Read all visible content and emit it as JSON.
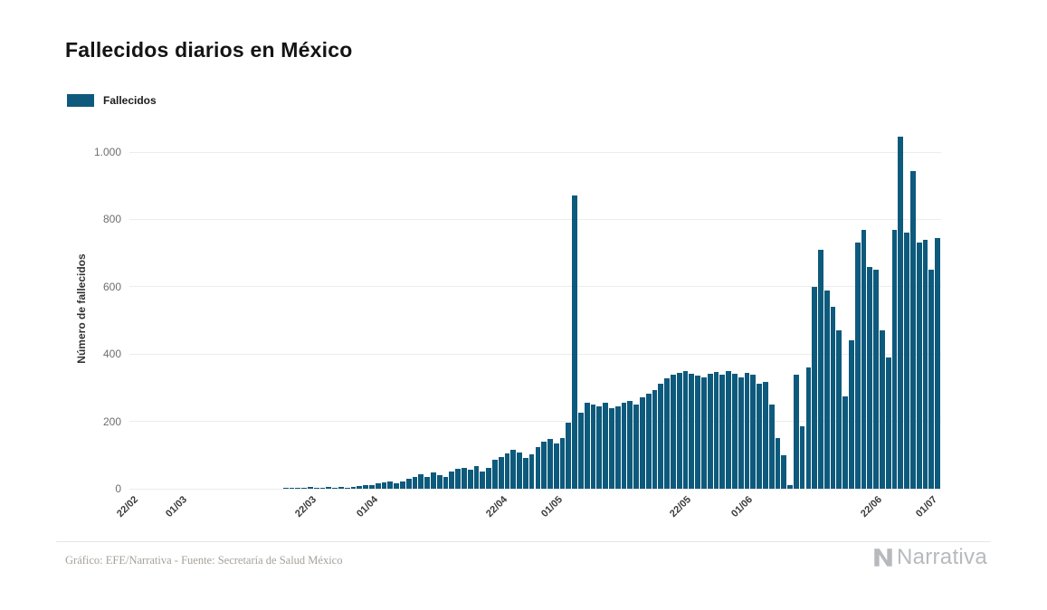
{
  "title": "Fallecidos diarios en México",
  "legend": {
    "label": "Fallecidos"
  },
  "y_axis": {
    "label": "Número de fallecidos"
  },
  "footer": {
    "source": "Gráfico: EFE/Narrativa - Fuente: Secretaría de Salud México",
    "brand": "Narrativa"
  },
  "colors": {
    "bar": "#0e5a7c",
    "grid": "#ececec",
    "axis_text": "#6e6e6e",
    "tick_text": "#3a3a3a",
    "footer_text": "#a6a199",
    "brand": "#b7babd"
  },
  "chart_data": {
    "type": "bar",
    "title": "Fallecidos diarios en México",
    "xlabel": "",
    "ylabel": "Número de fallecidos",
    "ylim": [
      0,
      1070
    ],
    "grid": true,
    "legend_position": "top-left",
    "legend_entries": [
      "Fallecidos"
    ],
    "y_tick_values": [
      0,
      200,
      400,
      600,
      800,
      1000
    ],
    "y_tick_labels": [
      "0",
      "200",
      "400",
      "600",
      "800",
      "1.000"
    ],
    "x_tick_labels": [
      "22/02",
      "01/03",
      "22/03",
      "01/04",
      "22/04",
      "01/05",
      "22/05",
      "01/06",
      "22/06",
      "01/07"
    ],
    "x_tick_indices": [
      0,
      8,
      29,
      39,
      60,
      69,
      90,
      100,
      121,
      130
    ],
    "x": [
      "22/02",
      "23/02",
      "24/02",
      "25/02",
      "26/02",
      "27/02",
      "28/02",
      "29/02",
      "01/03",
      "02/03",
      "03/03",
      "04/03",
      "05/03",
      "06/03",
      "07/03",
      "08/03",
      "09/03",
      "10/03",
      "11/03",
      "12/03",
      "13/03",
      "14/03",
      "15/03",
      "16/03",
      "17/03",
      "18/03",
      "19/03",
      "20/03",
      "21/03",
      "22/03",
      "23/03",
      "24/03",
      "25/03",
      "26/03",
      "27/03",
      "28/03",
      "29/03",
      "30/03",
      "31/03",
      "01/04",
      "02/04",
      "03/04",
      "04/04",
      "05/04",
      "06/04",
      "07/04",
      "08/04",
      "09/04",
      "10/04",
      "11/04",
      "12/04",
      "13/04",
      "14/04",
      "15/04",
      "16/04",
      "17/04",
      "18/04",
      "19/04",
      "20/04",
      "21/04",
      "22/04",
      "23/04",
      "24/04",
      "25/04",
      "26/04",
      "27/04",
      "28/04",
      "29/04",
      "30/04",
      "01/05",
      "02/05",
      "03/05",
      "04/05",
      "05/05",
      "06/05",
      "07/05",
      "08/05",
      "09/05",
      "10/05",
      "11/05",
      "12/05",
      "13/05",
      "14/05",
      "15/05",
      "16/05",
      "17/05",
      "18/05",
      "19/05",
      "20/05",
      "21/05",
      "22/05",
      "23/05",
      "24/05",
      "25/05",
      "26/05",
      "27/05",
      "28/05",
      "29/05",
      "30/05",
      "31/05",
      "01/06",
      "02/06",
      "03/06",
      "04/06",
      "05/06",
      "06/06",
      "07/06",
      "08/06",
      "09/06",
      "10/06",
      "11/06",
      "12/06",
      "13/06",
      "14/06",
      "15/06",
      "16/06",
      "17/06",
      "18/06",
      "19/06",
      "20/06",
      "21/06",
      "22/06",
      "23/06",
      "24/06",
      "25/06",
      "26/06",
      "27/06",
      "28/06",
      "29/06",
      "30/06",
      "01/07",
      "02/07"
    ],
    "values": [
      0,
      0,
      0,
      0,
      0,
      0,
      0,
      0,
      0,
      0,
      0,
      0,
      0,
      0,
      0,
      0,
      0,
      0,
      0,
      0,
      0,
      0,
      0,
      0,
      0,
      1,
      1,
      2,
      3,
      5,
      1,
      4,
      5,
      3,
      6,
      4,
      5,
      9,
      10,
      12,
      15,
      18,
      21,
      15,
      22,
      30,
      35,
      42,
      36,
      48,
      40,
      36,
      52,
      58,
      62,
      56,
      68,
      52,
      62,
      85,
      95,
      105,
      115,
      108,
      92,
      102,
      125,
      140,
      148,
      135,
      150,
      195,
      870,
      225,
      255,
      250,
      245,
      255,
      240,
      245,
      255,
      260,
      250,
      272,
      282,
      292,
      312,
      328,
      340,
      345,
      350,
      342,
      335,
      332,
      342,
      347,
      338,
      350,
      342,
      330,
      345,
      340,
      312,
      318,
      250,
      150,
      100,
      12,
      340,
      185,
      360,
      600,
      710,
      590,
      540,
      470,
      275,
      440,
      730,
      770,
      660,
      650,
      470,
      390,
      770,
      1045,
      760,
      945,
      730,
      740,
      650,
      745
    ]
  }
}
